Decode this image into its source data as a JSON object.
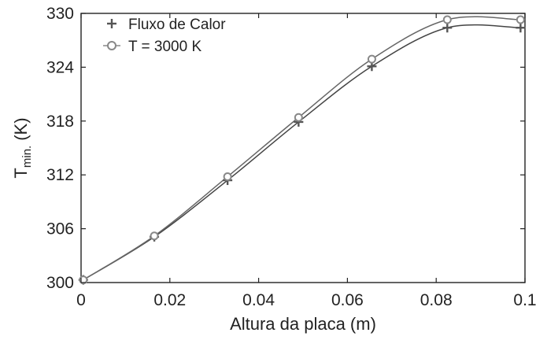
{
  "chart_data": {
    "type": "line",
    "xlabel": "Altura da placa (m)",
    "ylabel": {
      "main": "T",
      "sub": "min.",
      "unit": "(K)"
    },
    "xlim": [
      0,
      0.1
    ],
    "ylim": [
      300,
      330
    ],
    "x_ticks": [
      "0",
      "0.02",
      "0.04",
      "0.06",
      "0.08",
      "0.1"
    ],
    "x_tick_values": [
      0,
      0.02,
      0.04,
      0.06,
      0.08,
      0.1
    ],
    "y_ticks": [
      "300",
      "306",
      "312",
      "318",
      "324",
      "330"
    ],
    "y_tick_values": [
      300,
      306,
      312,
      318,
      324,
      330
    ],
    "grid": false,
    "legend_position": "top-left",
    "series": [
      {
        "name": "Fluxo de Calor",
        "marker": "plus",
        "color": "#555555",
        "x": [
          0.0005,
          0.0165,
          0.033,
          0.049,
          0.0655,
          0.0825,
          0.099
        ],
        "y": [
          300.3,
          305.1,
          311.4,
          317.9,
          324.1,
          328.4,
          328.4
        ]
      },
      {
        "name": "T = 3000 K",
        "marker": "circle",
        "color": "#888888",
        "x": [
          0.0005,
          0.0165,
          0.033,
          0.049,
          0.0655,
          0.0825,
          0.099
        ],
        "y": [
          300.3,
          305.2,
          311.8,
          318.4,
          324.9,
          329.3,
          329.3
        ]
      }
    ]
  }
}
